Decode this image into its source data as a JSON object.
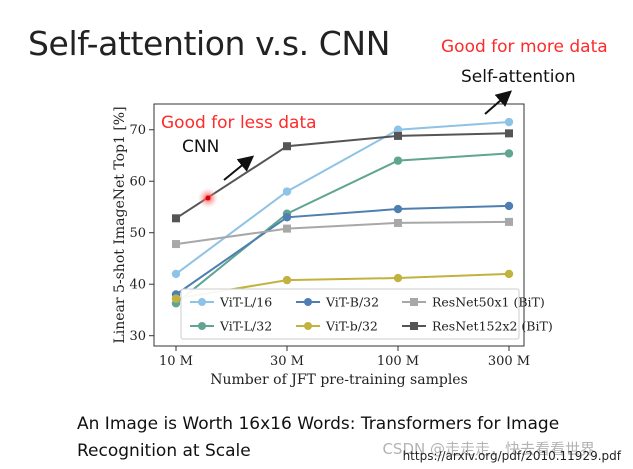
{
  "slide": {
    "title": "Self-attention v.s. CNN",
    "note_more_data": "Good for more data",
    "note_self_attention": "Self-attention",
    "note_less_data": "Good for less data",
    "note_cnn": "CNN",
    "caption_line1": "An Image is Worth 16x16 Words: Transformers for Image",
    "caption_line2": "Recognition at Scale",
    "url": "https://arxiv.org/pdf/2010.11929.pdf",
    "watermark": "CSDN @走走走，快去看看世界"
  },
  "colors": {
    "note_red": "#ff2a2a",
    "vit_l16": "#8ec3e6",
    "vit_l32": "#5fa591",
    "vit_b32": "#4f7fb0",
    "vit_b32_small": "#c2b23f",
    "resnet50x1": "#a8a8a8",
    "resnet152x2": "#555555"
  },
  "chart_data": {
    "type": "line",
    "xlabel": "Number of JFT pre-training samples",
    "ylabel": "Linear 5-shot ImageNet Top1 [%]",
    "x": [
      "10 M",
      "30 M",
      "100 M",
      "300 M"
    ],
    "ylim": [
      28,
      75
    ],
    "yticks": [
      30,
      40,
      50,
      60,
      70
    ],
    "grid": false,
    "legend_position": "bottom-right",
    "series": [
      {
        "name": "ViT-L/16",
        "color": "#8ec3e6",
        "marker": "circle",
        "values": [
          42,
          58,
          70,
          71.5
        ]
      },
      {
        "name": "ViT-L/32",
        "color": "#5fa591",
        "marker": "circle",
        "values": [
          36.3,
          53.7,
          64,
          65.4
        ]
      },
      {
        "name": "ViT-B/32",
        "color": "#4f7fb0",
        "marker": "circle",
        "values": [
          38,
          53,
          54.6,
          55.2
        ]
      },
      {
        "name": "ViT-b/32",
        "color": "#c2b23f",
        "marker": "circle",
        "values": [
          37.2,
          40.8,
          41.2,
          42
        ]
      },
      {
        "name": "ResNet50x1 (BiT)",
        "color": "#a8a8a8",
        "marker": "square",
        "values": [
          47.8,
          50.8,
          51.9,
          52.1
        ]
      },
      {
        "name": "ResNet152x2 (BiT)",
        "color": "#555555",
        "marker": "square",
        "values": [
          52.8,
          66.8,
          68.8,
          69.3
        ]
      }
    ]
  }
}
